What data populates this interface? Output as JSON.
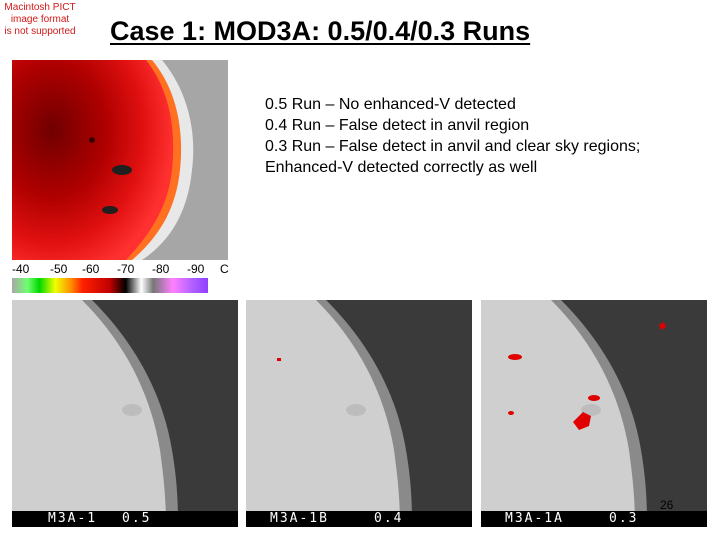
{
  "pict_notice": {
    "line1": "Macintosh PICT",
    "line2": "image format",
    "line3": "is not supported"
  },
  "slide": {
    "title": "Case 1: MOD3A: 0.5/0.4/0.3 Runs",
    "notes": [
      "0.5 Run – No enhanced-V detected",
      "0.4 Run – False detect in anvil region",
      "0.3 Run – False detect in anvil and clear sky regions; Enhanced-V detected correctly as well"
    ],
    "page_number": "26"
  },
  "colorbar": {
    "labels": [
      "-40",
      "-50",
      "-60",
      "-70",
      "-80",
      "-90",
      "C"
    ]
  },
  "panels": [
    {
      "label_id": "M3A-1",
      "label_val": "0.5"
    },
    {
      "label_id": "M3A-1B",
      "label_val": "0.4"
    },
    {
      "label_id": "M3A-1A",
      "label_val": "0.3"
    }
  ],
  "colors": {
    "detect": "#e00000",
    "cloud": "#cfcfcf",
    "sky": "#3a3a3a"
  }
}
